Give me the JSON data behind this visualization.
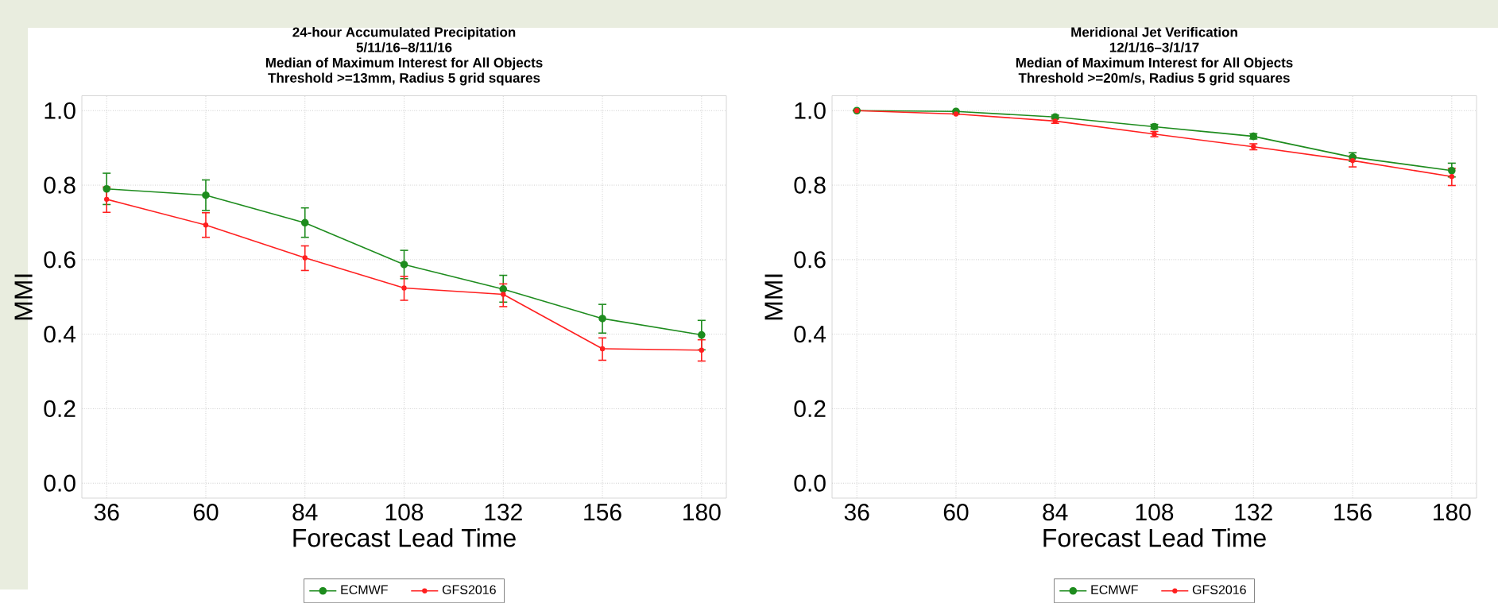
{
  "chart_data": [
    {
      "type": "line",
      "title": "24-hour Accumulated Precipitation",
      "subtitle": "5/11/16–8/11/16",
      "annotations": [
        "Median of Maximum Interest for All Objects",
        "Threshold >=13mm, Radius 5 grid squares"
      ],
      "xlabel": "Forecast Lead Time",
      "ylabel": "MMI",
      "x": [
        36,
        60,
        84,
        108,
        132,
        156,
        180
      ],
      "series": [
        {
          "name": "ECMWF",
          "color": "#1e8c1e",
          "values": [
            0.79,
            0.773,
            0.699,
            0.587,
            0.521,
            0.442,
            0.398
          ],
          "errors": [
            [
              0.748,
              0.832
            ],
            [
              0.732,
              0.814
            ],
            [
              0.66,
              0.739
            ],
            [
              0.549,
              0.625
            ],
            [
              0.486,
              0.558
            ],
            [
              0.403,
              0.48
            ],
            [
              0.358,
              0.437
            ]
          ]
        },
        {
          "name": "GFS2016",
          "color": "#ff2020",
          "values": [
            0.762,
            0.693,
            0.605,
            0.524,
            0.507,
            0.361,
            0.357
          ],
          "errors": [
            [
              0.727,
              0.795
            ],
            [
              0.66,
              0.726
            ],
            [
              0.571,
              0.637
            ],
            [
              0.491,
              0.555
            ],
            [
              0.474,
              0.535
            ],
            [
              0.33,
              0.39
            ],
            [
              0.328,
              0.385
            ]
          ]
        }
      ],
      "xlim": [
        30,
        186
      ],
      "ylim": [
        -0.04,
        1.04
      ],
      "xticks": [
        36,
        60,
        84,
        108,
        132,
        156,
        180
      ],
      "yticks": [
        {
          "value": 0,
          "label": "0.0"
        },
        {
          "value": 0.2,
          "label": "0.2"
        },
        {
          "value": 0.4,
          "label": "0.4"
        },
        {
          "value": 0.6,
          "label": "0.6"
        },
        {
          "value": 0.8,
          "label": "0.8"
        },
        {
          "value": 1.0,
          "label": "1.0"
        }
      ],
      "grid": true,
      "legend": "bottom",
      "marker": "circle",
      "line_style": "solid"
    },
    {
      "type": "line",
      "title": "Meridional Jet Verification",
      "subtitle": "12/1/16–3/1/17",
      "annotations": [
        "Median of Maximum Interest for All Objects",
        "Threshold >=20m/s, Radius 5 grid squares"
      ],
      "xlabel": "Forecast Lead Time",
      "ylabel": "MMI",
      "x": [
        36,
        60,
        84,
        108,
        132,
        156,
        180
      ],
      "series": [
        {
          "name": "ECMWF",
          "color": "#1e8c1e",
          "values": [
            1.0,
            0.998,
            0.983,
            0.957,
            0.931,
            0.875,
            0.839
          ],
          "errors": [
            null,
            null,
            [
              0.978,
              0.988
            ],
            [
              0.951,
              0.963
            ],
            [
              0.924,
              0.938
            ],
            [
              0.864,
              0.887
            ],
            [
              0.822,
              0.859
            ]
          ]
        },
        {
          "name": "GFS2016",
          "color": "#ff2020",
          "values": [
            1.0,
            0.991,
            0.972,
            0.937,
            0.903,
            0.866,
            0.823
          ],
          "errors": [
            null,
            null,
            [
              0.966,
              0.978
            ],
            [
              0.93,
              0.944
            ],
            [
              0.895,
              0.911
            ],
            [
              0.849,
              0.878
            ],
            [
              0.799,
              0.845
            ]
          ]
        }
      ],
      "xlim": [
        30,
        186
      ],
      "ylim": [
        -0.04,
        1.04
      ],
      "xticks": [
        36,
        60,
        84,
        108,
        132,
        156,
        180
      ],
      "yticks": [
        {
          "value": 0,
          "label": "0.0"
        },
        {
          "value": 0.2,
          "label": "0.2"
        },
        {
          "value": 0.4,
          "label": "0.4"
        },
        {
          "value": 0.6,
          "label": "0.6"
        },
        {
          "value": 0.8,
          "label": "0.8"
        },
        {
          "value": 1.0,
          "label": "1.0"
        }
      ],
      "grid": true,
      "legend": "bottom",
      "marker": "circle",
      "line_style": "solid"
    }
  ]
}
